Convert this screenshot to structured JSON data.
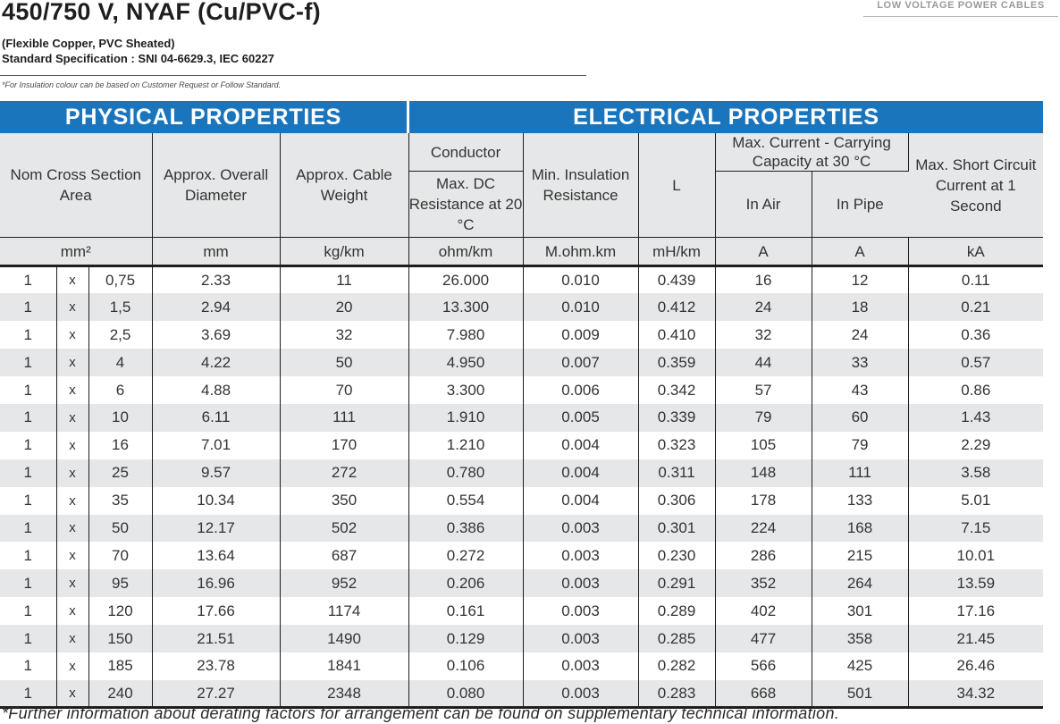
{
  "header": {
    "title": "450/750 V, NYAF (Cu/PVC-f)",
    "category": "LOW VOLTAGE POWER CABLES",
    "subtitle": "(Flexible Copper, PVC Sheated)",
    "spec": "Standard Specification : SNI 04-6629.3, IEC 60227",
    "note": "*For Insulation colour can be based on Customer Request or Follow Standard."
  },
  "bands": {
    "physical": "PHYSICAL PROPERTIES",
    "electrical": "ELECTRICAL PROPERTIES"
  },
  "columns": {
    "nom_cross": "Nom Cross Section Area",
    "diameter": "Approx. Overall Diameter",
    "weight": "Approx. Cable Weight",
    "conductor": "Conductor",
    "dc_resistance": "Max. DC Resistance at 20 °C",
    "insulation": "Min. Insulation Resistance",
    "inductance": "L",
    "current_group": "Max. Current - Carrying Capacity at 30 °C",
    "in_air": "In Air",
    "in_pipe": "In Pipe",
    "short_circuit": "Max. Short Circuit Current at 1 Second"
  },
  "units": {
    "area": "mm²",
    "diameter": "mm",
    "weight": "kg/km",
    "resistance": "ohm/km",
    "insulation": "M.ohm.km",
    "inductance": "mH/km",
    "air": "A",
    "pipe": "A",
    "short_circuit": "kA"
  },
  "rows": [
    [
      "1",
      "x",
      "0,75",
      "2.33",
      "11",
      "26.000",
      "0.010",
      "0.439",
      "16",
      "12",
      "0.11"
    ],
    [
      "1",
      "x",
      "1,5",
      "2.94",
      "20",
      "13.300",
      "0.010",
      "0.412",
      "24",
      "18",
      "0.21"
    ],
    [
      "1",
      "x",
      "2,5",
      "3.69",
      "32",
      "7.980",
      "0.009",
      "0.410",
      "32",
      "24",
      "0.36"
    ],
    [
      "1",
      "x",
      "4",
      "4.22",
      "50",
      "4.950",
      "0.007",
      "0.359",
      "44",
      "33",
      "0.57"
    ],
    [
      "1",
      "x",
      "6",
      "4.88",
      "70",
      "3.300",
      "0.006",
      "0.342",
      "57",
      "43",
      "0.86"
    ],
    [
      "1",
      "x",
      "10",
      "6.11",
      "111",
      "1.910",
      "0.005",
      "0.339",
      "79",
      "60",
      "1.43"
    ],
    [
      "1",
      "x",
      "16",
      "7.01",
      "170",
      "1.210",
      "0.004",
      "0.323",
      "105",
      "79",
      "2.29"
    ],
    [
      "1",
      "x",
      "25",
      "9.57",
      "272",
      "0.780",
      "0.004",
      "0.311",
      "148",
      "111",
      "3.58"
    ],
    [
      "1",
      "x",
      "35",
      "10.34",
      "350",
      "0.554",
      "0.004",
      "0.306",
      "178",
      "133",
      "5.01"
    ],
    [
      "1",
      "x",
      "50",
      "12.17",
      "502",
      "0.386",
      "0.003",
      "0.301",
      "224",
      "168",
      "7.15"
    ],
    [
      "1",
      "x",
      "70",
      "13.64",
      "687",
      "0.272",
      "0.003",
      "0.230",
      "286",
      "215",
      "10.01"
    ],
    [
      "1",
      "x",
      "95",
      "16.96",
      "952",
      "0.206",
      "0.003",
      "0.291",
      "352",
      "264",
      "13.59"
    ],
    [
      "1",
      "x",
      "120",
      "17.66",
      "1174",
      "0.161",
      "0.003",
      "0.289",
      "402",
      "301",
      "17.16"
    ],
    [
      "1",
      "x",
      "150",
      "21.51",
      "1490",
      "0.129",
      "0.003",
      "0.285",
      "477",
      "358",
      "21.45"
    ],
    [
      "1",
      "x",
      "185",
      "23.78",
      "1841",
      "0.106",
      "0.003",
      "0.282",
      "566",
      "425",
      "26.46"
    ],
    [
      "1",
      "x",
      "240",
      "27.27",
      "2348",
      "0.080",
      "0.003",
      "0.283",
      "668",
      "501",
      "34.32"
    ]
  ],
  "footer": "*Further information about derating factors for arrangement can be found on supplementary technical information."
}
